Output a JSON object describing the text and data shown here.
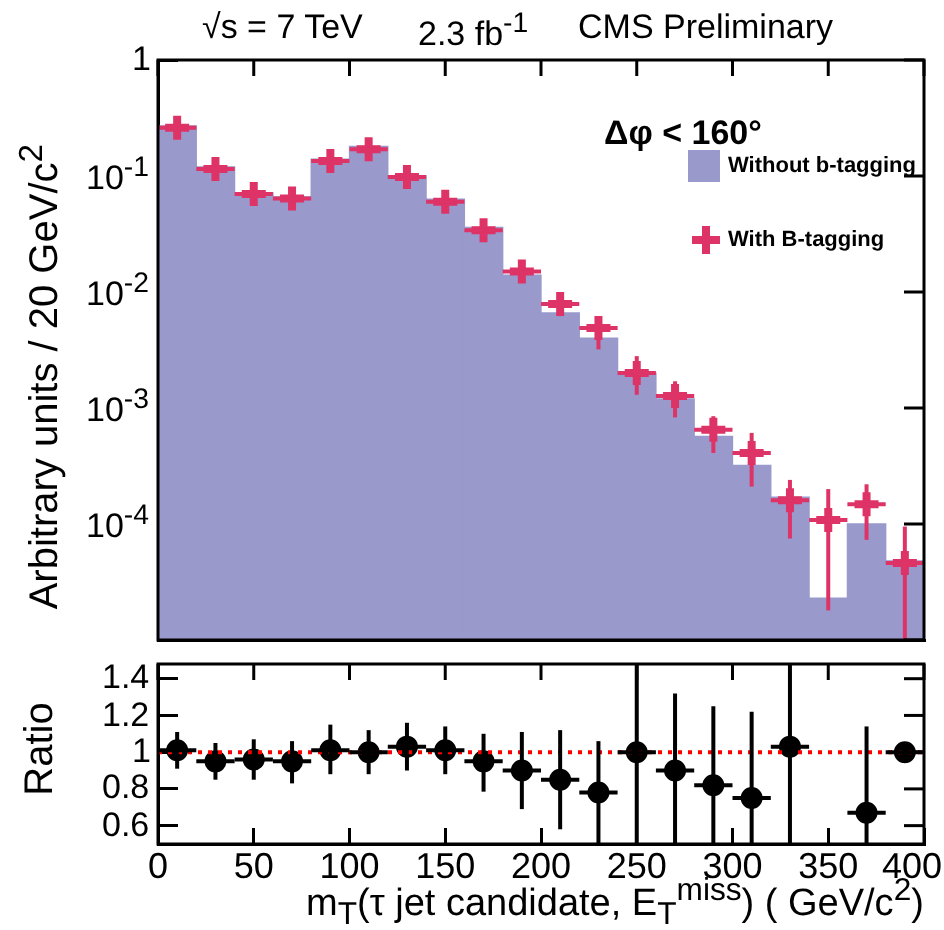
{
  "chart_data": [
    {
      "type": "histogram",
      "annotations": [
        "√s = 7 TeV",
        "2.3 fb$^{-1}$",
        "CMS Preliminary",
        "Δφ < 160°"
      ],
      "ylabel": "Arbitrary units / 20 GeV/c$^{2}$",
      "bins": [
        0,
        20,
        40,
        60,
        80,
        100,
        120,
        140,
        160,
        180,
        200,
        220,
        240,
        260,
        280,
        300,
        320,
        340,
        360,
        380,
        400
      ],
      "log": "y",
      "ylim": [
        1e-05,
        1
      ],
      "yticks": [
        {
          "value": 1e-05,
          "label": null
        },
        {
          "value": 0.0001,
          "label": "10$^{-4}$"
        },
        {
          "value": 0.001,
          "label": "10$^{-3}$"
        },
        {
          "value": 0.01,
          "label": "10$^{-2}$"
        },
        {
          "value": 0.1,
          "label": "10$^{-1}$"
        },
        1
      ],
      "xlim": [
        0,
        400
      ],
      "xticks": [
        0,
        50,
        100,
        150,
        200,
        250,
        300,
        350,
        400
      ],
      "tick_labels": "y",
      "legend": "top right",
      "marker": "cross",
      "grid": false,
      "series": [
        {
          "type": "histogram",
          "name": "Without b-tagging",
          "color": "#9999cc",
          "values": [
            0.27,
            0.12,
            0.072,
            0.066,
            0.14,
            0.18,
            0.1,
            0.063,
            0.036,
            0.014,
            0.0066,
            0.004,
            0.002,
            0.0012,
            0.00057,
            0.00032,
            0.00017,
            2.3e-05,
            0.0001,
            4.8e-05
          ]
        },
        {
          "type": "scatter",
          "name": "With B-tagging",
          "color": "#dd3366",
          "x": [
            10,
            30,
            50,
            70,
            90,
            110,
            130,
            150,
            170,
            190,
            210,
            230,
            250,
            270,
            290,
            310,
            330,
            350,
            370,
            390
          ],
          "values": [
            0.26,
            0.115,
            0.07,
            0.064,
            0.135,
            0.17,
            0.098,
            0.06,
            0.034,
            0.015,
            0.0079,
            0.0049,
            0.002,
            0.00127,
            0.00065,
            0.00041,
            0.00016,
            0.000108,
            0.000148,
            4.6e-05
          ],
          "errors": [
            null,
            null,
            null,
            null,
            null,
            null,
            null,
            null,
            null,
            null,
            [
              0.0062,
              0.0098
            ],
            [
              0.0032,
              0.0057
            ],
            [
              0.0013,
              0.0028
            ],
            [
              0.00083,
              0.0017
            ],
            [
              0.00041,
              0.00085
            ],
            [
              0.00021,
              0.00061
            ],
            [
              7.5e-05,
              0.00024
            ],
            [
              1.8e-05,
              0.0002
            ],
            [
              7.3e-05,
              0.00022
            ],
            [
              1e-05,
              9.5e-05
            ]
          ],
          "xerrors": [
            10,
            10,
            10,
            10,
            10,
            10,
            10,
            10,
            10,
            10,
            10,
            10,
            10,
            10,
            10,
            10,
            10,
            10,
            10,
            10
          ]
        }
      ]
    },
    {
      "type": "scatter",
      "ylabel": "Ratio",
      "xlabel": "m$_{T}$(τ jet candidate, E$_{T}$$^{miss}$) ( GeV/c$^{2}$)",
      "xlim": [
        0,
        400
      ],
      "xticks": [
        0,
        50,
        100,
        150,
        200,
        250,
        300,
        350,
        400
      ],
      "ylim": [
        0.5,
        1.48
      ],
      "yticks": [
        0.6,
        0.8,
        1,
        1.2,
        1.4
      ],
      "marker": "circle",
      "grid": false,
      "ref_lines": [
        {
          "axis": "y",
          "value": 1,
          "color": "#ff0000",
          "line_style": "dotted"
        }
      ],
      "series": [
        {
          "color": "#000000",
          "x": [
            10,
            30,
            50,
            70,
            90,
            110,
            130,
            150,
            170,
            190,
            210,
            230,
            250,
            270,
            290,
            310,
            330,
            350,
            370,
            390
          ],
          "values": [
            1.01,
            0.95,
            0.96,
            0.95,
            1.01,
            1.0,
            1.03,
            1.01,
            0.95,
            0.9,
            0.85,
            0.78,
            1.0,
            0.9,
            0.82,
            0.75,
            1.03,
            null,
            0.67,
            1.0
          ],
          "errors": [
            [
              0.91,
              1.11
            ],
            [
              0.85,
              1.05
            ],
            [
              0.85,
              1.07
            ],
            [
              0.83,
              1.06
            ],
            [
              0.88,
              1.15
            ],
            [
              0.88,
              1.12
            ],
            [
              0.9,
              1.16
            ],
            [
              0.88,
              1.14
            ],
            [
              0.785,
              1.1
            ],
            [
              0.69,
              1.11
            ],
            [
              0.58,
              1.12
            ],
            [
              0.5,
              1.06
            ],
            [
              0.5,
              1.48
            ],
            [
              0.5,
              1.32
            ],
            [
              0.5,
              1.25
            ],
            [
              0.5,
              1.22
            ],
            [
              0.5,
              1.48
            ],
            null,
            [
              0.5,
              1.14
            ],
            null
          ],
          "xerrors": [
            10,
            10,
            10,
            10,
            10,
            10,
            10,
            10,
            10,
            10,
            10,
            10,
            10,
            10,
            10,
            10,
            10,
            null,
            10,
            10
          ]
        }
      ]
    }
  ]
}
